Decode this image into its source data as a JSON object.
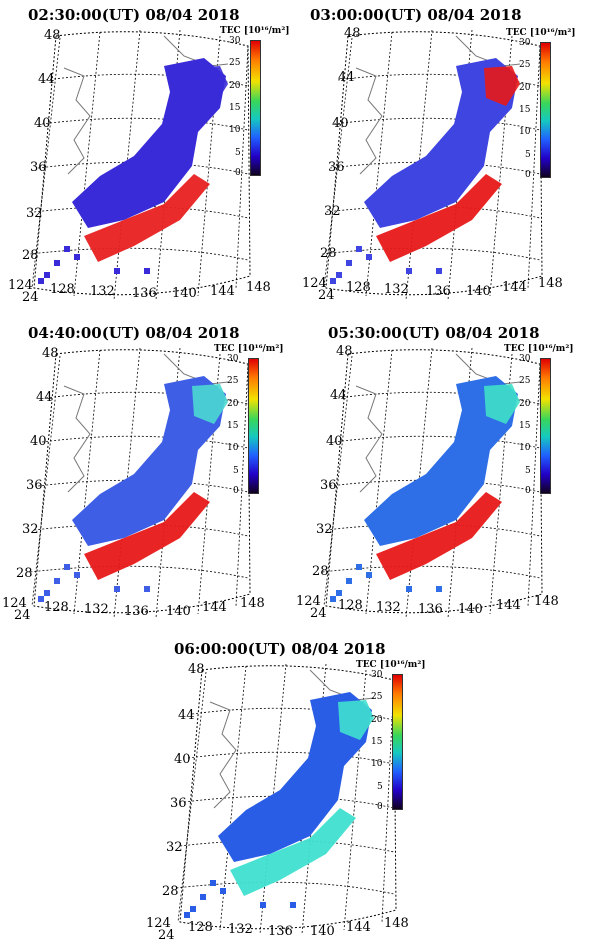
{
  "colorbar": {
    "label": "TEC [10¹⁶/m²]",
    "ticks": [
      "30",
      "25",
      "20",
      "15",
      "10",
      "5",
      "0"
    ],
    "gradient": [
      "#e00000",
      "#ff7a00",
      "#f2e200",
      "#39d65a",
      "#15c9c0",
      "#2060ff",
      "#2200c8",
      "#110020"
    ]
  },
  "lat_labels": [
    "48",
    "44",
    "40",
    "36",
    "32",
    "28",
    "24"
  ],
  "lon_labels": [
    "124",
    "128",
    "132",
    "136",
    "140",
    "144",
    "148"
  ],
  "panels": [
    {
      "title": "02:30:00(UT)  08/04 2018",
      "island_color": "#3a2bd8",
      "band_color": "#e82020",
      "east_color": "#3a2bd8"
    },
    {
      "title": "03:00:00(UT)  08/04 2018",
      "island_color": "#3f45e0",
      "band_color": "#e81818",
      "east_color": "#e81818"
    },
    {
      "title": "04:40:00(UT)  08/04 2018",
      "island_color": "#3f5ee6",
      "band_color": "#e81818",
      "east_color": "#4ad8d0"
    },
    {
      "title": "05:30:00(UT)  08/04 2018",
      "island_color": "#2e6fe8",
      "band_color": "#e81818",
      "east_color": "#3fe0c8"
    },
    {
      "title": "06:00:00(UT)  08/04 2018",
      "island_color": "#2a5de6",
      "band_color": "#3fe0d0",
      "east_color": "#3fe0d0"
    }
  ]
}
